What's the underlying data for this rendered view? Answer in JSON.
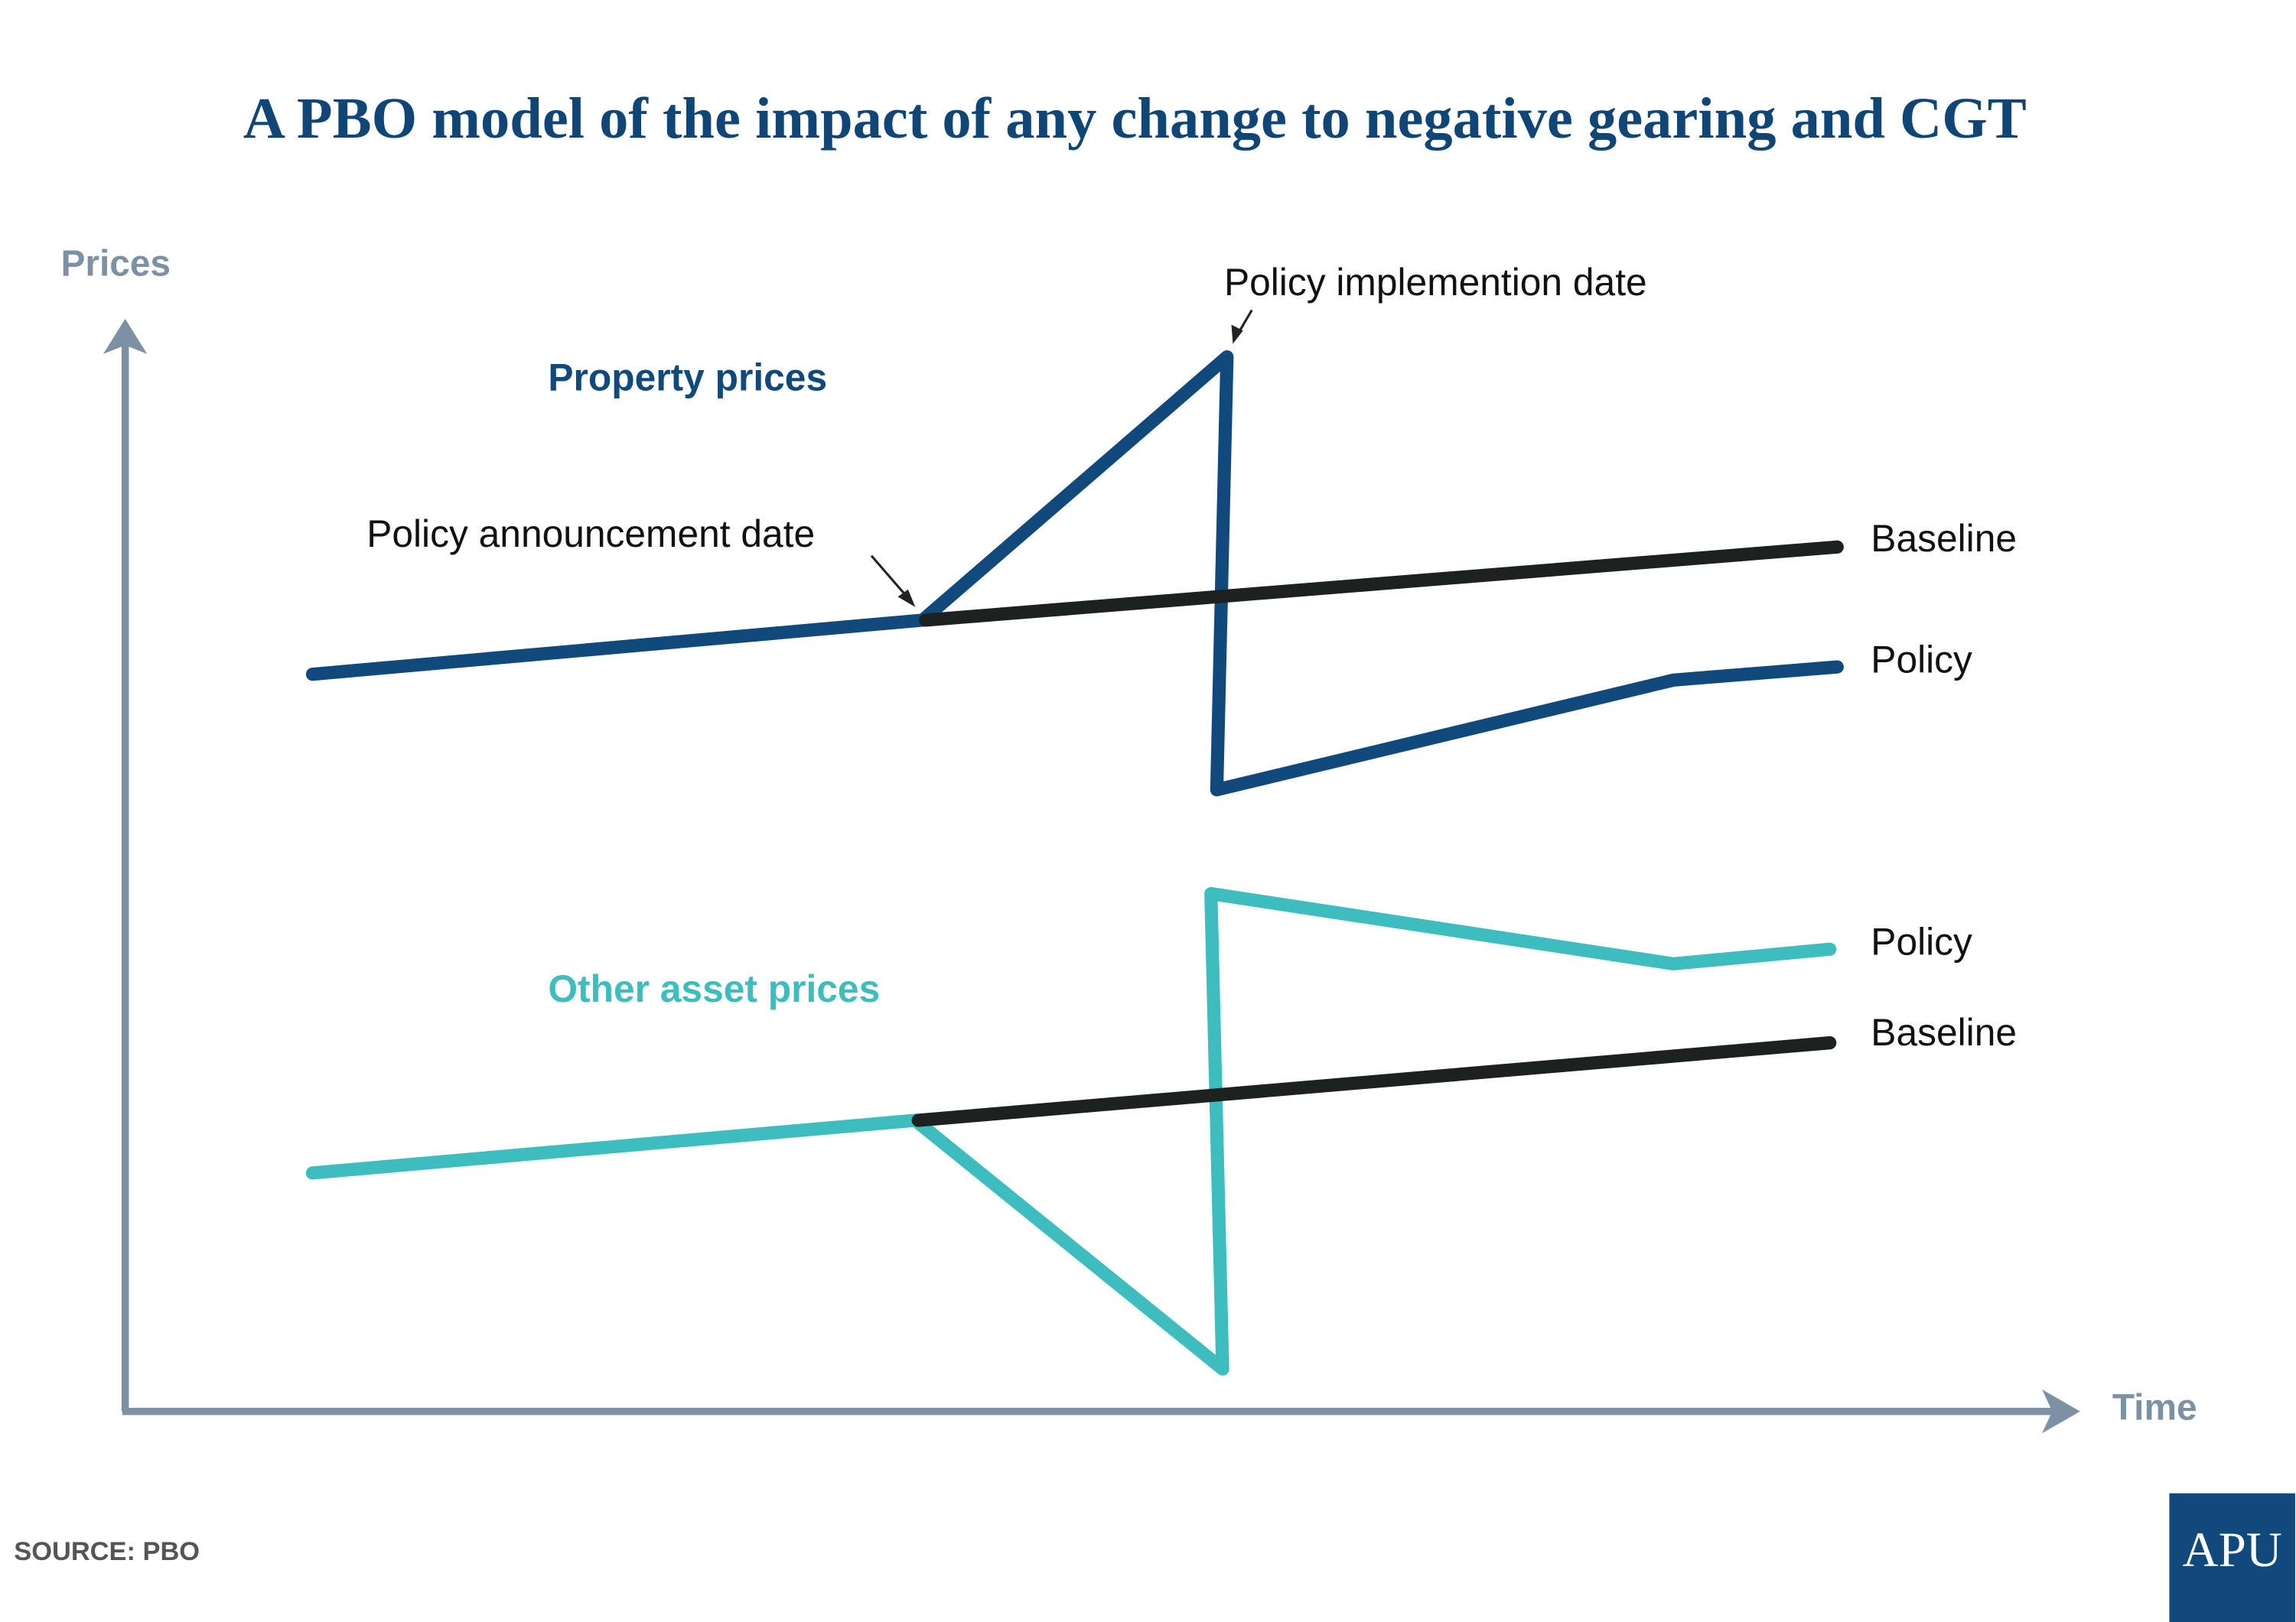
{
  "title": "A PBO model of the impact of any change to negative gearing and CGT",
  "y_axis_label": "Prices",
  "x_axis_label": "Time",
  "groups": [
    {
      "label": "Property prices",
      "baseline_label": "Baseline",
      "policy_label": "Policy"
    },
    {
      "label": "Other asset prices",
      "baseline_label": "Baseline",
      "policy_label": "Policy"
    }
  ],
  "annotations": [
    "Policy announcement date",
    "Policy implemention date"
  ],
  "source": "SOURCE: PBO",
  "logo": "APU"
}
